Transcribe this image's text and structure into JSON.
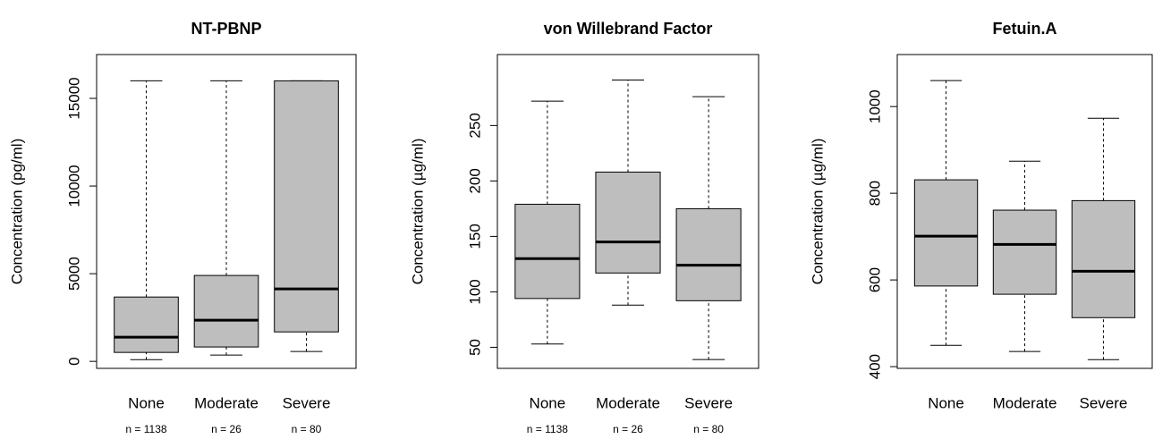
{
  "chart_data": [
    {
      "type": "box",
      "title": "NT-PBNP",
      "ylabel": "Concentration (pg/ml)",
      "categories": [
        "None",
        "Moderate",
        "Severe"
      ],
      "n_labels": [
        "n = 1138",
        "n = 26",
        "n = 80"
      ],
      "whislo": [
        100,
        360,
        560
      ],
      "q1": [
        510,
        820,
        1680
      ],
      "med": [
        1380,
        2350,
        4130
      ],
      "q3": [
        3670,
        4900,
        16000
      ],
      "whishi": [
        16000,
        16000,
        16000
      ],
      "color": "#bebebe",
      "ylim": [
        -400,
        17500
      ],
      "yticks": [
        0,
        5000,
        10000,
        15000
      ]
    },
    {
      "type": "box",
      "title": "von Willebrand Factor",
      "ylabel": "Concentration (µg/ml)",
      "categories": [
        "None",
        "Moderate",
        "Severe"
      ],
      "n_labels": [
        "n = 1138",
        "n = 26",
        "n = 80"
      ],
      "whislo": [
        53,
        88,
        39
      ],
      "q1": [
        94,
        117,
        92
      ],
      "med": [
        130,
        145,
        124
      ],
      "q3": [
        179,
        208,
        175
      ],
      "whishi": [
        272,
        291,
        276
      ],
      "color": "#bebebe",
      "ylim": [
        31,
        314
      ],
      "yticks": [
        50,
        100,
        150,
        200,
        250
      ]
    },
    {
      "type": "box",
      "title": "Fetuin.A",
      "ylabel": "Concentration (µg/ml)",
      "categories": [
        "None",
        "Moderate",
        "Severe"
      ],
      "whislo": [
        449,
        435,
        416
      ],
      "q1": [
        586,
        567,
        513
      ],
      "med": [
        701,
        682,
        620
      ],
      "q3": [
        831,
        761,
        783
      ],
      "whishi": [
        1060,
        874,
        973
      ],
      "color": "#bebebe",
      "ylim": [
        396,
        1120
      ],
      "yticks": [
        400,
        600,
        800,
        1000
      ]
    }
  ]
}
